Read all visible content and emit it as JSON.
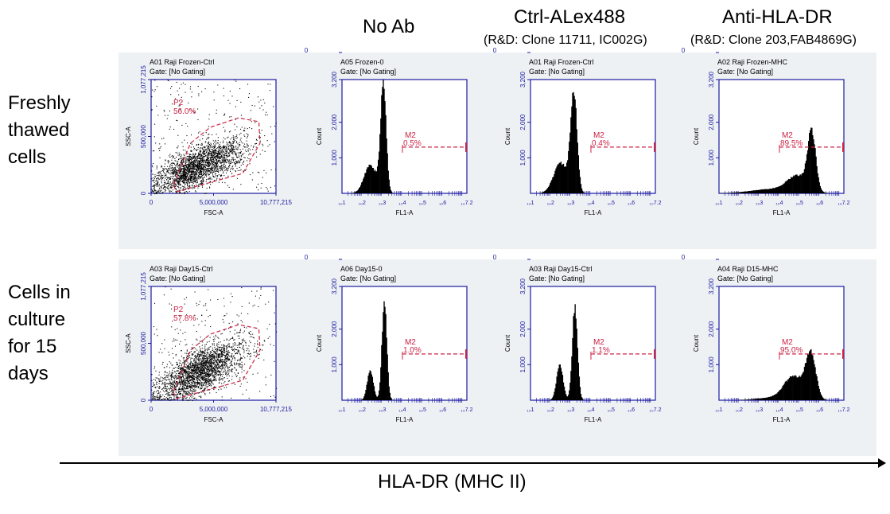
{
  "columns": [
    {
      "title": "No Ab",
      "subtitle": ""
    },
    {
      "title": "Ctrl-ALex488",
      "subtitle": "(R&D: Clone 11711, IC002G)"
    },
    {
      "title": "Anti-HLA-DR",
      "subtitle": "(R&D: Clone 203,FAB4869G)"
    }
  ],
  "rows": [
    {
      "label_lines": [
        "Freshly",
        "thawed",
        "cells"
      ]
    },
    {
      "label_lines": [
        "Cells in",
        "culture",
        "for 15",
        "days"
      ]
    }
  ],
  "axis_label": "HLA-DR (MHC II)",
  "colors": {
    "frame": "#1a1aa0",
    "gate": "#cc2244",
    "panel_bg": "#eef1f4",
    "events": "#000000"
  },
  "chart_data": [
    {
      "type": "scatter",
      "row": 0,
      "title": "A01 Raji Frozen-Ctrl",
      "gate_text": "Gate: [No Gating]",
      "xlabel": "FSC-A",
      "ylabel": "SSC-A",
      "xlim": [
        0,
        10777215
      ],
      "ylim": [
        0,
        1077215
      ],
      "xticks": [
        "0",
        "5,000,000",
        "10,777,215"
      ],
      "yticks": [
        "0",
        "500,000",
        "1,077,215"
      ],
      "region": {
        "name": "P2",
        "percent": "56.0%",
        "polygon": [
          [
            1920000,
            75000
          ],
          [
            2200000,
            15000
          ],
          [
            7900000,
            188000
          ],
          [
            9400000,
            475000
          ],
          [
            9300000,
            678000
          ],
          [
            7550000,
            715000
          ],
          [
            5100000,
            625000
          ],
          [
            3400000,
            475000
          ]
        ]
      },
      "cloud": {
        "center": [
          4000000,
          260000
        ],
        "spread": [
          1900000,
          150000
        ]
      }
    },
    {
      "type": "histogram",
      "row": 0,
      "title": "A05 Frozen-0",
      "gate_text": "Gate: [No Gating]",
      "xlabel": "FL1-A",
      "ylabel": "Count",
      "xscale": "log",
      "xlim": [
        1,
        7.2
      ],
      "ylim": [
        0,
        3200
      ],
      "xticks": [
        "10^1",
        "10^2",
        "10^3",
        "10^4",
        "10^5",
        "10^6",
        "10^7.2"
      ],
      "yticks": [
        "0",
        "1,000",
        "2,000",
        "3,200"
      ],
      "marker": {
        "name": "M2",
        "percent": "0.5%",
        "from_log": 4,
        "to_log": 7.2,
        "level": 1300
      },
      "peaks": [
        {
          "log_fl1": 2.4,
          "count": 800,
          "width": 0.3
        },
        {
          "log_fl1": 3.05,
          "count": 3000,
          "width": 0.14
        }
      ]
    },
    {
      "type": "histogram",
      "row": 0,
      "title": "A01 Raji Frozen-Ctrl",
      "gate_text": "Gate: [No Gating]",
      "xlabel": "FL1-A",
      "ylabel": "Count",
      "xscale": "log",
      "xlim": [
        1,
        7.2
      ],
      "ylim": [
        0,
        3200
      ],
      "xticks": [
        "10^1",
        "10^2",
        "10^3",
        "10^4",
        "10^5",
        "10^6",
        "10^7.2"
      ],
      "yticks": [
        "0",
        "1,000",
        "2,000",
        "3,200"
      ],
      "marker": {
        "name": "M2",
        "percent": "0.4%",
        "from_log": 4,
        "to_log": 7.2,
        "level": 1300
      },
      "peaks": [
        {
          "log_fl1": 2.5,
          "count": 850,
          "width": 0.35
        },
        {
          "log_fl1": 3.15,
          "count": 2700,
          "width": 0.16
        }
      ]
    },
    {
      "type": "histogram",
      "row": 0,
      "title": "A02 Raji Frozen-MHC",
      "gate_text": "Gate: [No Gating]",
      "xlabel": "FL1-A",
      "ylabel": "Count",
      "xscale": "log",
      "xlim": [
        1,
        7.2
      ],
      "ylim": [
        0,
        3200
      ],
      "xticks": [
        "10^1",
        "10^2",
        "10^3",
        "10^4",
        "10^5",
        "10^6",
        "10^7.2"
      ],
      "yticks": [
        "0",
        "1,000",
        "2,000",
        "3,200"
      ],
      "marker": {
        "name": "M2",
        "percent": "89.5%",
        "from_log": 4,
        "to_log": 7.2,
        "level": 1300
      },
      "peaks": [
        {
          "log_fl1": 3.6,
          "count": 120,
          "width": 1.0
        },
        {
          "log_fl1": 4.9,
          "count": 450,
          "width": 0.5
        },
        {
          "log_fl1": 5.6,
          "count": 1600,
          "width": 0.2
        }
      ]
    },
    {
      "type": "scatter",
      "row": 1,
      "title": "A03 Raji Day15-Ctrl",
      "gate_text": "Gate: [No Gating]",
      "xlabel": "FSC-A",
      "ylabel": "SSC-A",
      "xlim": [
        0,
        10777215
      ],
      "ylim": [
        0,
        1077215
      ],
      "xticks": [
        "0",
        "5,000,000",
        "10,777,215"
      ],
      "yticks": [
        "0",
        "500,000",
        "1,077,215"
      ],
      "region": {
        "name": "P2",
        "percent": "57.8%",
        "polygon": [
          [
            1920000,
            75000
          ],
          [
            2200000,
            15000
          ],
          [
            7900000,
            188000
          ],
          [
            9400000,
            475000
          ],
          [
            9300000,
            678000
          ],
          [
            7550000,
            715000
          ],
          [
            5100000,
            625000
          ],
          [
            3400000,
            475000
          ]
        ]
      },
      "cloud": {
        "center": [
          4200000,
          280000
        ],
        "spread": [
          1800000,
          170000
        ]
      }
    },
    {
      "type": "histogram",
      "row": 1,
      "title": "A06 Day15-0",
      "gate_text": "Gate: [No Gating]",
      "xlabel": "FL1-A",
      "ylabel": "Count",
      "xscale": "log",
      "xlim": [
        1,
        7.2
      ],
      "ylim": [
        0,
        3200
      ],
      "xticks": [
        "10^1",
        "10^2",
        "10^3",
        "10^4",
        "10^5",
        "10^6",
        "10^7.2"
      ],
      "yticks": [
        "0",
        "1,000",
        "2,000",
        "3,200"
      ],
      "marker": {
        "name": "M2",
        "percent": "1.0%",
        "from_log": 4,
        "to_log": 7.2,
        "level": 1300
      },
      "peaks": [
        {
          "log_fl1": 2.4,
          "count": 850,
          "width": 0.15
        },
        {
          "log_fl1": 3.1,
          "count": 2800,
          "width": 0.12
        }
      ]
    },
    {
      "type": "histogram",
      "row": 1,
      "title": "A03 Raji Day15-Ctrl",
      "gate_text": "Gate: [No Gating]",
      "xlabel": "FL1-A",
      "ylabel": "Count",
      "xscale": "log",
      "xlim": [
        1,
        7.2
      ],
      "ylim": [
        0,
        3200
      ],
      "xticks": [
        "10^1",
        "10^2",
        "10^3",
        "10^4",
        "10^5",
        "10^6",
        "10^7.2"
      ],
      "yticks": [
        "0",
        "1,000",
        "2,000",
        "3,200"
      ],
      "marker": {
        "name": "M2",
        "percent": "1.1%",
        "from_log": 4,
        "to_log": 7.2,
        "level": 1300
      },
      "peaks": [
        {
          "log_fl1": 2.45,
          "count": 1000,
          "width": 0.16
        },
        {
          "log_fl1": 3.2,
          "count": 2600,
          "width": 0.13
        }
      ]
    },
    {
      "type": "histogram",
      "row": 1,
      "title": "A04 Raji D15-MHC",
      "gate_text": "Gate: [No Gating]",
      "xlabel": "FL1-A",
      "ylabel": "Count",
      "xscale": "log",
      "xlim": [
        1,
        7.2
      ],
      "ylim": [
        0,
        3200
      ],
      "xticks": [
        "10^1",
        "10^2",
        "10^3",
        "10^4",
        "10^5",
        "10^6",
        "10^7.2"
      ],
      "yticks": [
        "0",
        "1,000",
        "2,000",
        "3,200"
      ],
      "marker": {
        "name": "M2",
        "percent": "95.0%",
        "from_log": 4,
        "to_log": 7.2,
        "level": 1300
      },
      "peaks": [
        {
          "log_fl1": 3.8,
          "count": 80,
          "width": 0.8
        },
        {
          "log_fl1": 4.7,
          "count": 650,
          "width": 0.45
        },
        {
          "log_fl1": 5.55,
          "count": 1300,
          "width": 0.25
        }
      ]
    }
  ]
}
